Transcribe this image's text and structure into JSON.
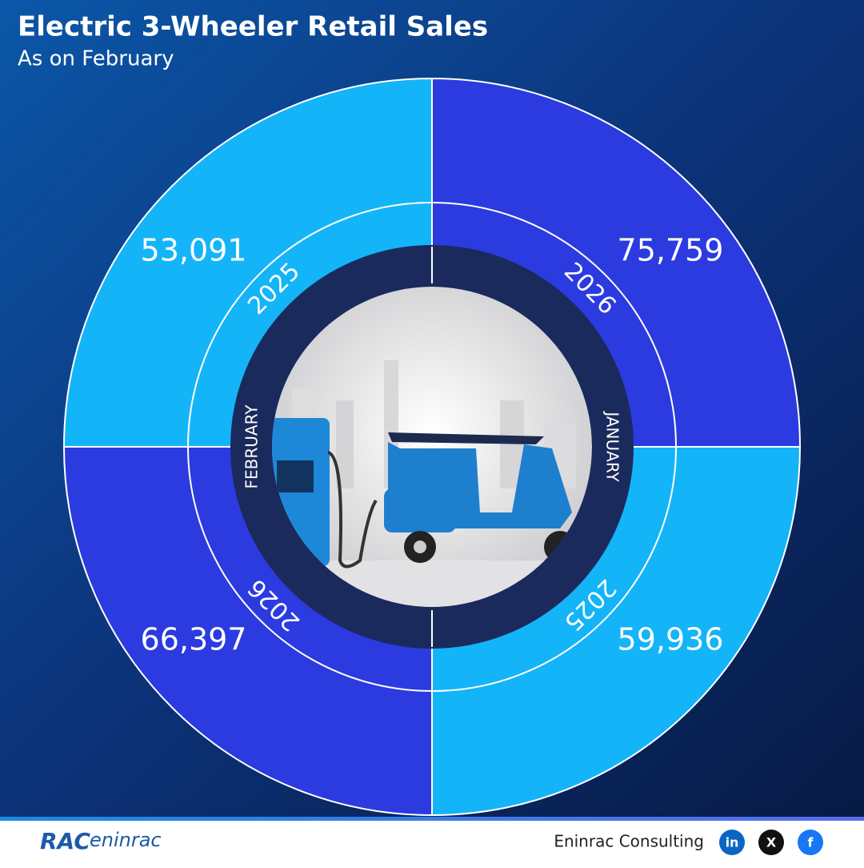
{
  "header": {
    "title": "Electric 3-Wheeler Retail Sales",
    "subtitle": "As on February"
  },
  "months": [
    "FEBRUARY",
    "JANUARY"
  ],
  "segments": [
    {
      "year": "2025",
      "value": "53,091",
      "color": "#14b4f8"
    },
    {
      "year": "2026",
      "value": "75,759",
      "color": "#2b3be0"
    },
    {
      "year": "2025",
      "value": "59,936",
      "color": "#14b4f8"
    },
    {
      "year": "2026",
      "value": "66,397",
      "color": "#2b3be0"
    }
  ],
  "footer": {
    "logo": "RAC",
    "logo_text": "eninrac",
    "company": "Eninrac Consulting",
    "social": [
      "in",
      "X",
      "f"
    ]
  }
}
